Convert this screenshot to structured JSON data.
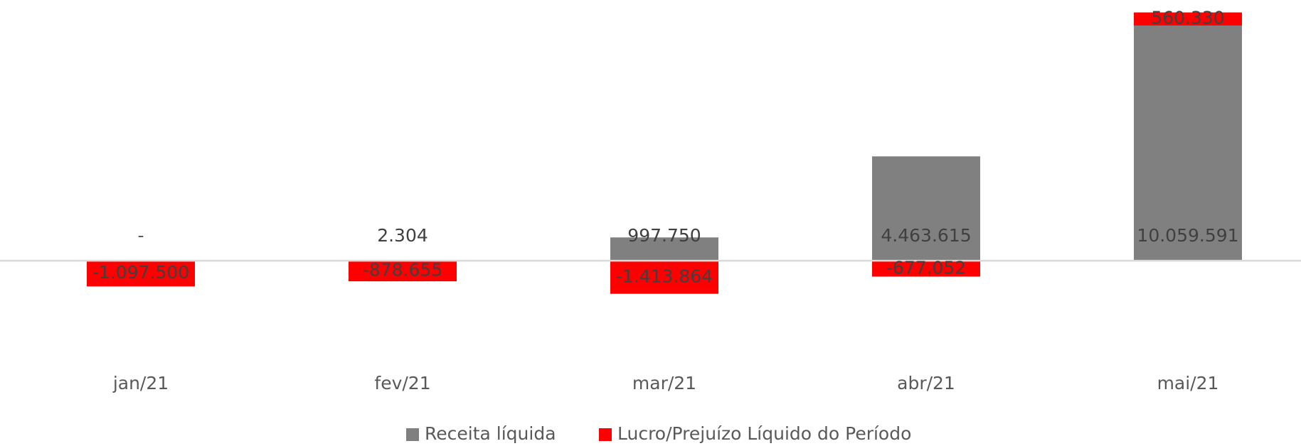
{
  "chart_data": {
    "type": "stacked_bar",
    "categories": [
      "jan/21",
      "fev/21",
      "mar/21",
      "abr/21",
      "mai/21"
    ],
    "series": [
      {
        "name": "Receita líquida",
        "color": "#808080",
        "values": [
          0,
          2304,
          997750,
          4463615,
          10059591
        ],
        "value_labels": [
          "-",
          "2.304",
          "997.750",
          "4.463.615",
          "10.059.591"
        ]
      },
      {
        "name": "Lucro/Prejuízo Líquido do Período",
        "color": "#ff0000",
        "values": [
          -1097500,
          -878655,
          -1413864,
          -677052,
          560330
        ],
        "value_labels": [
          "-1.097.500",
          "-878.655",
          "-1.413.864",
          "-677.052",
          "560.330"
        ]
      }
    ],
    "ylim": [
      -2000000,
      11000000
    ],
    "legend": "bottom"
  }
}
